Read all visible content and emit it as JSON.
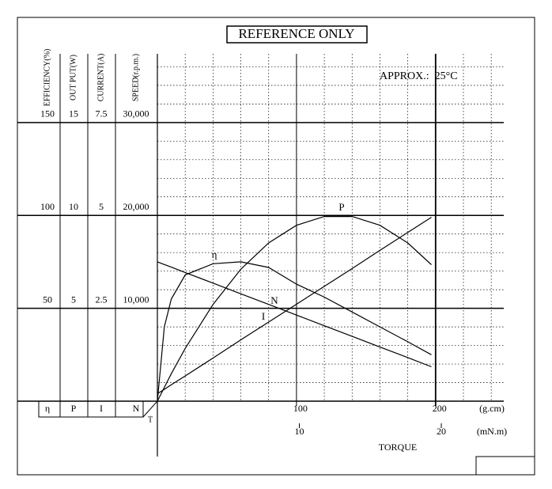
{
  "chart_data": {
    "type": "motor-characteristics",
    "title": "REFERENCE ONLY",
    "annotation": "APPROX.:  25°C",
    "x_axis_label": "TORQUE",
    "x": [
      0,
      5,
      10,
      20,
      40,
      60,
      80,
      100,
      120,
      140,
      160,
      180,
      197
    ],
    "x_axes": [
      {
        "unit": "(g.cm)",
        "xlim": [
          0,
          249
        ],
        "xticks": [
          100,
          200
        ],
        "minor_xticks": [
          20,
          40,
          60,
          80,
          120,
          140,
          160,
          180,
          220,
          240
        ]
      },
      {
        "unit": "(mN.m)",
        "xlim": [
          0,
          24.4
        ],
        "xticks": [
          10,
          20
        ]
      }
    ],
    "extra_label": "T",
    "grid": true,
    "series": [
      {
        "name": "η",
        "axis_label": "EFFICIENCY(%)",
        "ylim": [
          0,
          187
        ],
        "yticks": [
          50,
          100,
          150
        ],
        "values": [
          0,
          40,
          55,
          68,
          74,
          75,
          72,
          63,
          56,
          48,
          40,
          32,
          25
        ]
      },
      {
        "name": "P",
        "axis_label": "OUT PUT(W)",
        "ylim": [
          0,
          18.7
        ],
        "yticks": [
          5,
          10,
          15
        ],
        "values": [
          0,
          0.74,
          1.48,
          2.84,
          5.21,
          7.1,
          8.52,
          9.47,
          9.94,
          9.94,
          9.47,
          8.52,
          7.35
        ]
      },
      {
        "name": "I",
        "axis_label": "CURRENT(A)",
        "ylim": [
          0,
          9.35
        ],
        "yticks": [
          2.5,
          5,
          7.5
        ],
        "values": [
          0.2,
          0.32,
          0.44,
          0.68,
          1.16,
          1.65,
          2.13,
          2.61,
          3.09,
          3.57,
          4.06,
          4.54,
          4.95
        ]
      },
      {
        "name": "N",
        "axis_label": "SPEED(r.p.m.)",
        "ylim": [
          0,
          37400
        ],
        "yticks": [
          {
            "value": 10000,
            "label": "10,000"
          },
          {
            "value": 20000,
            "label": "20,000"
          },
          {
            "value": 30000,
            "label": "30,000"
          }
        ],
        "minor_yticks": [
          2000,
          4000,
          6000,
          8000,
          12000,
          14000,
          16000,
          18000,
          22000,
          24000,
          26000,
          28000,
          32000,
          34000,
          36000
        ],
        "values": [
          15000,
          14710,
          14430,
          13850,
          12710,
          11560,
          10420,
          9270,
          8120,
          6980,
          5830,
          4690,
          3710
        ]
      }
    ]
  }
}
